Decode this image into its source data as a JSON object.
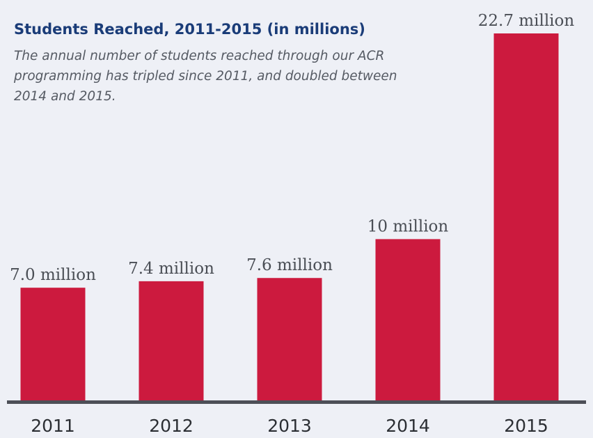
{
  "chart_data": {
    "type": "bar",
    "title": "Students Reached, 2011-2015 (in millions)",
    "subtitle": "The annual number of students reached through our ACR programming has tripled since 2011, and doubled between 2014 and 2015.",
    "categories": [
      "2011",
      "2012",
      "2013",
      "2014",
      "2015"
    ],
    "values": [
      7.0,
      7.4,
      7.6,
      10,
      22.7
    ],
    "value_labels": [
      "7.0 million",
      "7.4 million",
      "7.6 million",
      "10 million",
      "22.7 million"
    ],
    "xlabel": "",
    "ylabel": "",
    "ylim": [
      0,
      22.7
    ],
    "grid": false,
    "legend": "none"
  },
  "colors": {
    "bar": "#cc1a3e",
    "axis": "#4d4f57",
    "title": "#1a3c78",
    "background": "#eef0f6"
  }
}
